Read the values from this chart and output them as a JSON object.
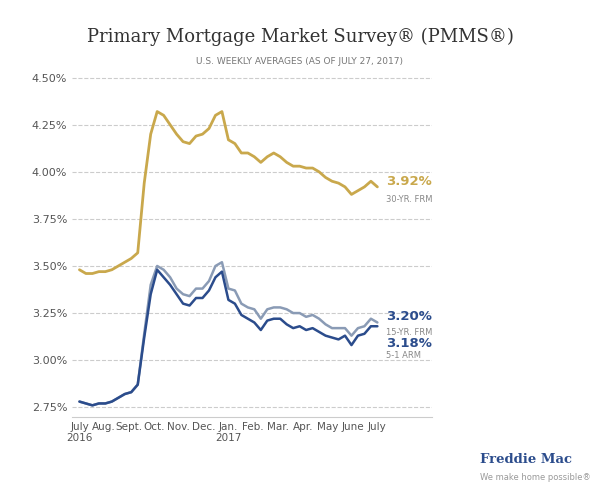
{
  "title": "Primary Mortgage Market Survey® (PMMS®)",
  "subtitle": "U.S. WEEKLY AVERAGES (AS OF JULY 27, 2017)",
  "yticks": [
    2.75,
    3.0,
    3.25,
    3.5,
    3.75,
    4.0,
    4.25,
    4.5
  ],
  "x_labels": [
    "July\n2016",
    "Aug.",
    "Sept.",
    "Oct.",
    "Nov.",
    "Dec.",
    "Jan.\n2017",
    "Feb.",
    "Mar.",
    "Apr.",
    "May",
    "June",
    "July"
  ],
  "color_30yr": "#C9A84C",
  "color_15yr": "#8A9BB5",
  "color_5arm": "#2B4C8C",
  "background_color": "#FFFFFF",
  "freddie_text": "Freddie Mac",
  "freddie_sub": "We make home possible®",
  "val_30yr": "3.92%",
  "lbl_30yr": "30-YR. FRM",
  "val_15yr": "3.20%",
  "lbl_15yr": "15-YR. FRM",
  "val_5arm": "3.18%",
  "lbl_5arm": "5-1 ARM",
  "data_30yr": [
    3.48,
    3.46,
    3.46,
    3.47,
    3.47,
    3.48,
    3.5,
    3.52,
    3.54,
    3.57,
    3.94,
    4.2,
    4.32,
    4.3,
    4.25,
    4.2,
    4.16,
    4.15,
    4.19,
    4.2,
    4.23,
    4.3,
    4.32,
    4.17,
    4.15,
    4.1,
    4.1,
    4.08,
    4.05,
    4.08,
    4.1,
    4.08,
    4.05,
    4.03,
    4.03,
    4.02,
    4.02,
    4.0,
    3.97,
    3.95,
    3.94,
    3.92,
    3.88,
    3.9,
    3.92,
    3.95,
    3.92
  ],
  "data_15yr": [
    2.78,
    2.77,
    2.76,
    2.77,
    2.77,
    2.78,
    2.8,
    2.82,
    2.83,
    2.87,
    3.14,
    3.4,
    3.5,
    3.48,
    3.44,
    3.38,
    3.35,
    3.34,
    3.38,
    3.38,
    3.42,
    3.5,
    3.52,
    3.38,
    3.37,
    3.3,
    3.28,
    3.27,
    3.22,
    3.27,
    3.28,
    3.28,
    3.27,
    3.25,
    3.25,
    3.23,
    3.24,
    3.22,
    3.19,
    3.17,
    3.17,
    3.17,
    3.13,
    3.17,
    3.18,
    3.22,
    3.2
  ],
  "data_5arm": [
    2.78,
    2.77,
    2.76,
    2.77,
    2.77,
    2.78,
    2.8,
    2.82,
    2.83,
    2.87,
    3.12,
    3.35,
    3.48,
    3.44,
    3.4,
    3.35,
    3.3,
    3.29,
    3.33,
    3.33,
    3.37,
    3.44,
    3.47,
    3.32,
    3.3,
    3.24,
    3.22,
    3.2,
    3.16,
    3.21,
    3.22,
    3.22,
    3.19,
    3.17,
    3.18,
    3.16,
    3.17,
    3.15,
    3.13,
    3.12,
    3.11,
    3.13,
    3.08,
    3.13,
    3.14,
    3.18,
    3.18
  ]
}
